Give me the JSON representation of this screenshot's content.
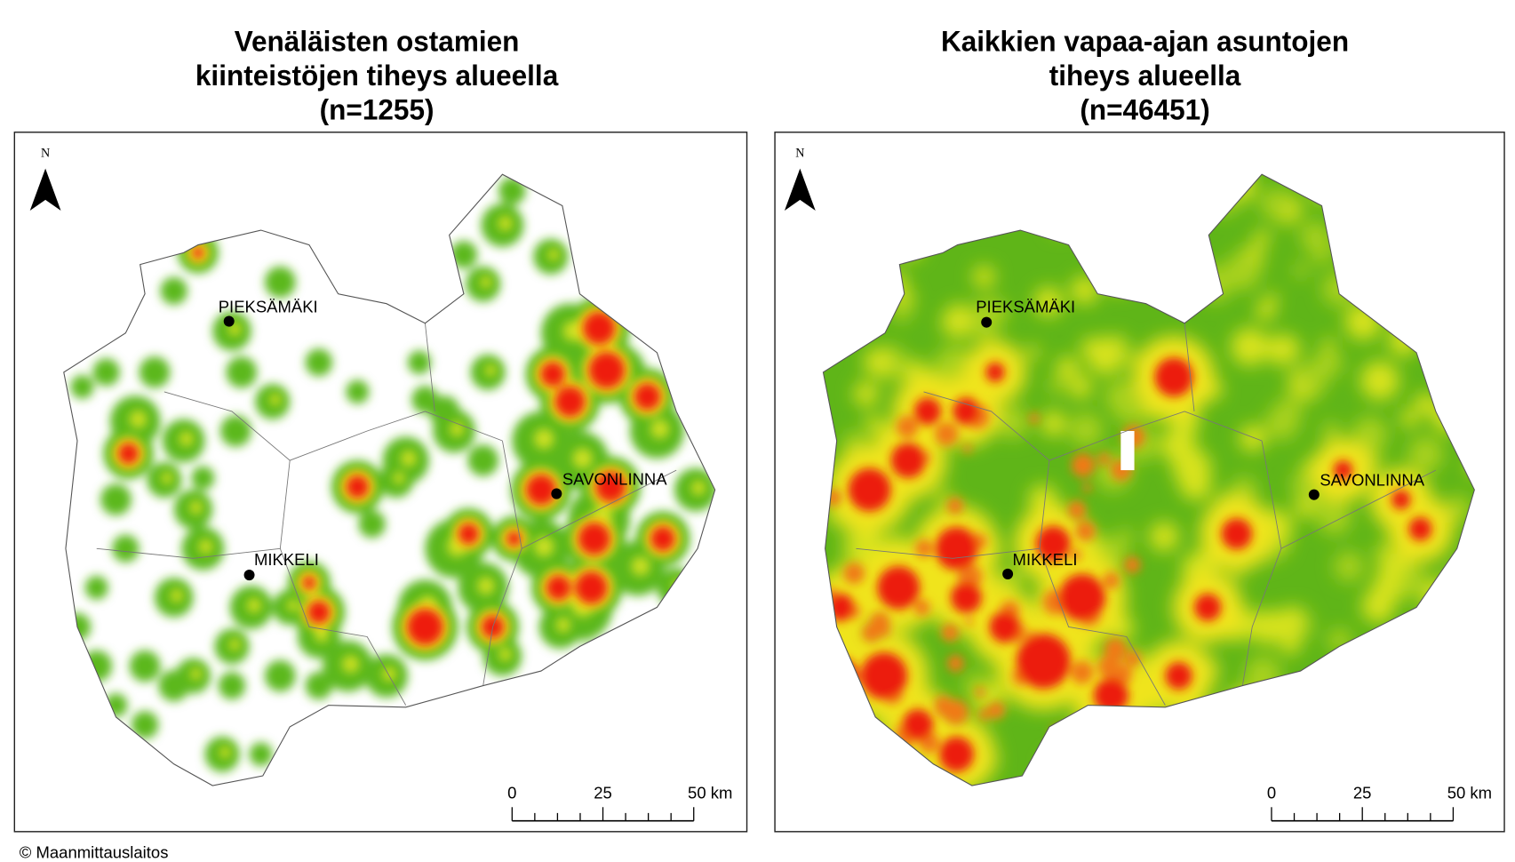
{
  "panels": [
    {
      "title": [
        "Venäläisten ostamien",
        "kiinteistöjen tiheys alueella",
        "(n=1255)"
      ],
      "north": "N",
      "cities": [
        "PIEKSÄMÄKI",
        "MIKKELI",
        "SAVONLINNA"
      ],
      "scale_labels": [
        "0",
        "25",
        "50 km"
      ]
    },
    {
      "title": [
        "Kaikkien vapaa-ajan asuntojen",
        "tiheys alueella",
        "(n=46451)"
      ],
      "north": "N",
      "cities": [
        "PIEKSÄMÄKI",
        "MIKKELI",
        "SAVONLINNA"
      ],
      "scale_labels": [
        "0",
        "25",
        "50 km"
      ]
    }
  ],
  "credit": "© Maanmittauslaitos"
}
